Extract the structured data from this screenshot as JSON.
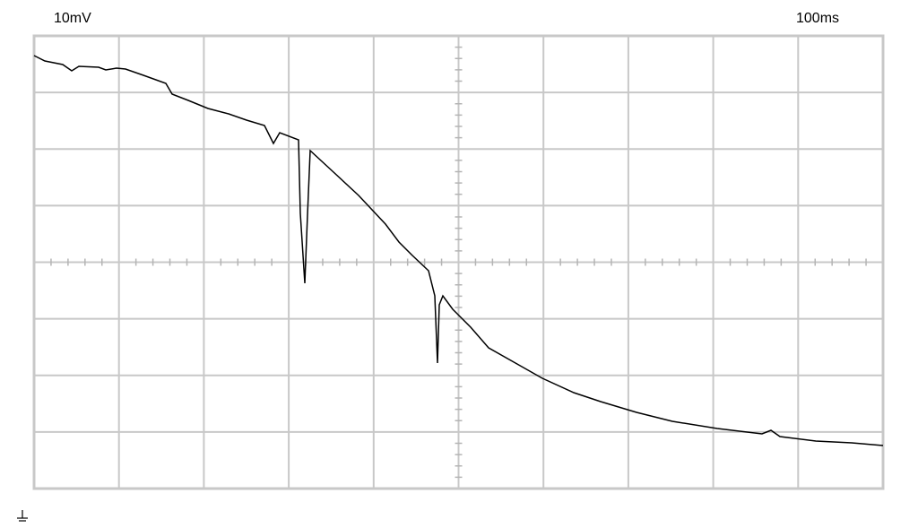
{
  "header": {
    "volts_per_div": "10mV",
    "time_per_div": "100ms"
  }
}
